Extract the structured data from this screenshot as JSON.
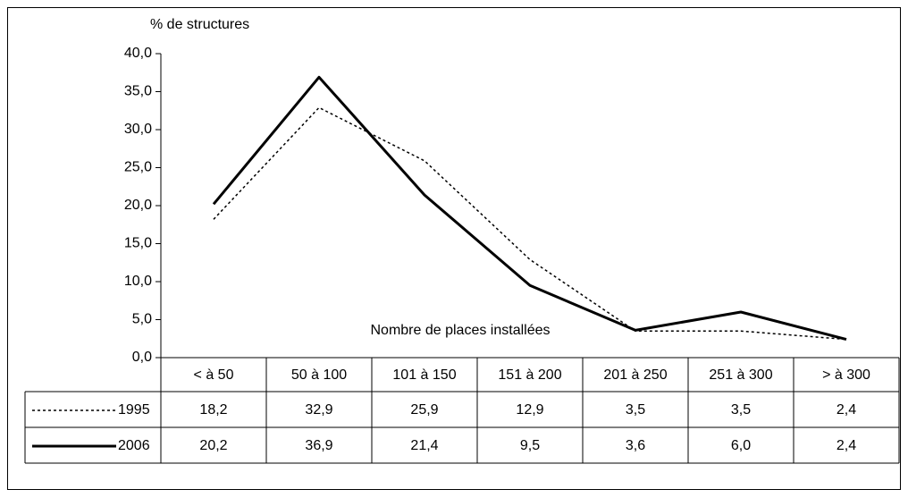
{
  "chart_data": {
    "type": "line",
    "y_label": "% de structures",
    "annotation": "Nombre de places installées",
    "categories": [
      "< à 50",
      "50 à 100",
      "101 à 150",
      "151 à 200",
      "201 à 250",
      "251 à 300",
      "> à 300"
    ],
    "series": [
      {
        "name": "1995",
        "color": "#000000",
        "line_style": "dashed",
        "values": [
          18.2,
          32.9,
          25.9,
          12.9,
          3.5,
          3.5,
          2.4
        ],
        "value_labels": [
          "18,2",
          "32,9",
          "25,9",
          "12,9",
          "3,5",
          "3,5",
          "2,4"
        ]
      },
      {
        "name": "2006",
        "color": "#000000",
        "line_style": "solid",
        "values": [
          20.2,
          36.9,
          21.4,
          9.5,
          3.6,
          6.0,
          2.4
        ],
        "value_labels": [
          "20,2",
          "36,9",
          "21,4",
          "9,5",
          "3,6",
          "6,0",
          "2,4"
        ]
      }
    ],
    "ylim": [
      0,
      40
    ],
    "yticks": [
      {
        "value": 0,
        "label": "0,0"
      },
      {
        "value": 5,
        "label": "5,0"
      },
      {
        "value": 10,
        "label": "10,0"
      },
      {
        "value": 15,
        "label": "15,0"
      },
      {
        "value": 20,
        "label": "20,0"
      },
      {
        "value": 25,
        "label": "25,0"
      },
      {
        "value": 30,
        "label": "30,0"
      },
      {
        "value": 35,
        "label": "35,0"
      },
      {
        "value": 40,
        "label": "40,0"
      }
    ],
    "grid": false
  }
}
